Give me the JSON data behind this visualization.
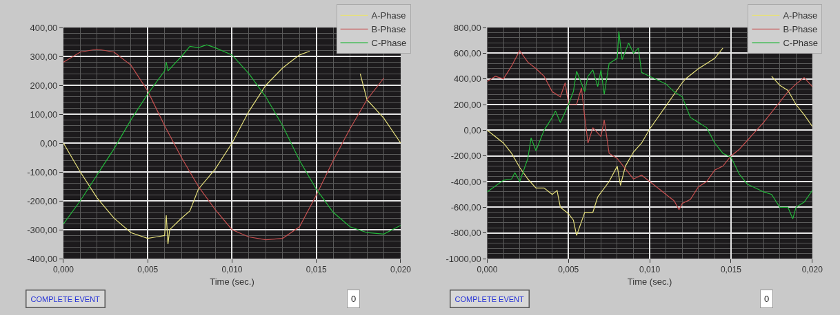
{
  "chart_data": [
    {
      "type": "line",
      "xlabel": "Time (sec.)",
      "xlim": [
        0,
        0.02
      ],
      "xticks": [
        {
          "value": 0,
          "label": "0,000"
        },
        {
          "value": 0.005,
          "label": "0,005"
        },
        {
          "value": 0.01,
          "label": "0,010"
        },
        {
          "value": 0.015,
          "label": "0,015"
        },
        {
          "value": 0.02,
          "label": "0,020"
        }
      ],
      "ylim": [
        -400,
        400
      ],
      "yticks": [
        {
          "value": -400,
          "label": "-400,00"
        },
        {
          "value": -300,
          "label": "-300,00"
        },
        {
          "value": -200,
          "label": "-200,00"
        },
        {
          "value": -100,
          "label": "-100,00"
        },
        {
          "value": 0,
          "label": "0,00"
        },
        {
          "value": 100,
          "label": "100,00"
        },
        {
          "value": 200,
          "label": "200,00"
        },
        {
          "value": 300,
          "label": "300,00"
        },
        {
          "value": 400,
          "label": "400,00"
        }
      ],
      "grid": true,
      "legend": "top right",
      "line_style": "solid",
      "marker": "none",
      "annotations": [
        "COMPLETE EVENT",
        "0"
      ],
      "series": [
        {
          "name": "A-Phase",
          "color": "#e6e07c",
          "x": [
            0,
            0.001,
            0.002,
            0.003,
            0.004,
            0.005,
            0.0055,
            0.006,
            0.0061,
            0.0062,
            0.0063,
            0.007,
            0.0075,
            0.008,
            0.009,
            0.01,
            0.011,
            0.012,
            0.013,
            0.014,
            0.0146,
            0.015,
            0.016,
            0.017,
            0.0176,
            0.018,
            0.019,
            0.02
          ],
          "values": [
            0,
            -100,
            -190,
            -260,
            -310,
            -330,
            -325,
            -320,
            -250,
            -350,
            -300,
            -260,
            -235,
            -160,
            -90,
            0,
            110,
            200,
            260,
            305,
            318,
            null,
            null,
            null,
            240,
            150,
            86,
            0
          ]
        },
        {
          "name": "B-Phase",
          "color": "#c85050",
          "x": [
            0,
            0.001,
            0.002,
            0.003,
            0.004,
            0.005,
            0.006,
            0.007,
            0.008,
            0.009,
            0.01,
            0.011,
            0.012,
            0.013,
            0.014,
            0.015,
            0.016,
            0.017,
            0.018,
            0.019
          ],
          "values": [
            280,
            315,
            325,
            315,
            270,
            180,
            60,
            -50,
            -150,
            -230,
            -300,
            -325,
            -335,
            -330,
            -290,
            -180,
            -60,
            50,
            150,
            225
          ]
        },
        {
          "name": "C-Phase",
          "color": "#22b83a",
          "x": [
            0,
            0.001,
            0.002,
            0.003,
            0.004,
            0.005,
            0.006,
            0.0061,
            0.0062,
            0.007,
            0.0075,
            0.008,
            0.0085,
            0.009,
            0.01,
            0.011,
            0.012,
            0.013,
            0.014,
            0.015,
            0.016,
            0.017,
            0.018,
            0.019,
            0.02
          ],
          "values": [
            -280,
            -200,
            -110,
            -20,
            80,
            170,
            250,
            280,
            250,
            300,
            335,
            330,
            340,
            330,
            305,
            240,
            160,
            60,
            -60,
            -160,
            -240,
            -290,
            -310,
            -315,
            -285
          ]
        }
      ]
    },
    {
      "type": "line",
      "xlabel": "Time (sec.)",
      "xlim": [
        0,
        0.02
      ],
      "xticks": [
        {
          "value": 0,
          "label": "0,000"
        },
        {
          "value": 0.005,
          "label": "0,005"
        },
        {
          "value": 0.01,
          "label": "0,010"
        },
        {
          "value": 0.015,
          "label": "0,015"
        },
        {
          "value": 0.02,
          "label": "0,020"
        }
      ],
      "ylim": [
        -1000,
        800
      ],
      "yticks": [
        {
          "value": -1000,
          "label": "-1000,00"
        },
        {
          "value": -800,
          "label": "-800,00"
        },
        {
          "value": -600,
          "label": "-600,00"
        },
        {
          "value": -400,
          "label": "-400,00"
        },
        {
          "value": -200,
          "label": "-200,00"
        },
        {
          "value": 0,
          "label": "0,00"
        },
        {
          "value": 200,
          "label": "200,00"
        },
        {
          "value": 400,
          "label": "400,00"
        },
        {
          "value": 600,
          "label": "600,00"
        },
        {
          "value": 800,
          "label": "800,00"
        }
      ],
      "grid": true,
      "legend": "top right",
      "line_style": "solid",
      "marker": "none",
      "annotations": [
        "COMPLETE EVENT",
        "0"
      ],
      "series": [
        {
          "name": "A-Phase",
          "color": "#e6e07c",
          "x": [
            0,
            0.001,
            0.0015,
            0.002,
            0.0025,
            0.003,
            0.0035,
            0.004,
            0.0043,
            0.0045,
            0.005,
            0.0053,
            0.0055,
            0.006,
            0.0065,
            0.0068,
            0.0075,
            0.008,
            0.0082,
            0.0085,
            0.009,
            0.0095,
            0.01,
            0.011,
            0.012,
            0.0122,
            0.013,
            0.014,
            0.0145,
            0.015,
            0.016,
            0.017,
            0.0175,
            0.018,
            0.0185,
            0.019,
            0.0195,
            0.02
          ],
          "values": [
            0,
            -100,
            -180,
            -290,
            -380,
            -450,
            -450,
            -500,
            -470,
            -600,
            -650,
            -700,
            -820,
            -640,
            -640,
            -520,
            -400,
            -280,
            -430,
            -280,
            -170,
            -100,
            10,
            190,
            370,
            400,
            480,
            560,
            640,
            null,
            null,
            null,
            420,
            350,
            310,
            200,
            120,
            30
          ]
        },
        {
          "name": "B-Phase",
          "color": "#c85050",
          "x": [
            0,
            0.0005,
            0.001,
            0.0015,
            0.002,
            0.0025,
            0.003,
            0.0035,
            0.004,
            0.0045,
            0.0048,
            0.005,
            0.0055,
            0.0058,
            0.006,
            0.0062,
            0.0065,
            0.007,
            0.0072,
            0.0075,
            0.008,
            0.0085,
            0.009,
            0.0095,
            0.01,
            0.0105,
            0.011,
            0.0115,
            0.0118,
            0.012,
            0.0125,
            0.013,
            0.0135,
            0.014,
            0.0145,
            0.015,
            0.0155,
            0.016,
            0.0165,
            0.017,
            0.0175,
            0.018,
            0.0185,
            0.019,
            0.0195,
            0.02
          ],
          "values": [
            380,
            420,
            400,
            500,
            620,
            530,
            480,
            420,
            300,
            260,
            370,
            200,
            200,
            330,
            100,
            -100,
            20,
            -50,
            80,
            -180,
            -220,
            -300,
            -380,
            -350,
            -400,
            -450,
            -500,
            -550,
            -620,
            -570,
            -540,
            -440,
            -400,
            -310,
            -280,
            -200,
            -150,
            -80,
            -10,
            60,
            140,
            220,
            300,
            360,
            410,
            340
          ]
        },
        {
          "name": "C-Phase",
          "color": "#22b83a",
          "x": [
            0,
            0.001,
            0.0015,
            0.0017,
            0.002,
            0.0025,
            0.0027,
            0.003,
            0.0035,
            0.004,
            0.0042,
            0.0045,
            0.005,
            0.0053,
            0.0055,
            0.006,
            0.0062,
            0.0065,
            0.0068,
            0.007,
            0.0072,
            0.0075,
            0.008,
            0.0081,
            0.0083,
            0.0087,
            0.009,
            0.0093,
            0.0095,
            0.01,
            0.0105,
            0.011,
            0.0115,
            0.012,
            0.0125,
            0.013,
            0.0135,
            0.014,
            0.0145,
            0.015,
            0.0155,
            0.016,
            0.0165,
            0.017,
            0.0175,
            0.018,
            0.0185,
            0.0188,
            0.019,
            0.0195,
            0.02
          ],
          "values": [
            -480,
            -390,
            -380,
            -330,
            -400,
            -220,
            -60,
            -160,
            0,
            100,
            150,
            60,
            200,
            300,
            460,
            300,
            420,
            470,
            340,
            470,
            280,
            520,
            560,
            770,
            550,
            680,
            600,
            640,
            450,
            420,
            390,
            360,
            300,
            260,
            100,
            60,
            20,
            -100,
            -180,
            -210,
            -340,
            -420,
            -450,
            -480,
            -500,
            -600,
            -600,
            -690,
            -600,
            -560,
            -470
          ]
        }
      ]
    }
  ]
}
